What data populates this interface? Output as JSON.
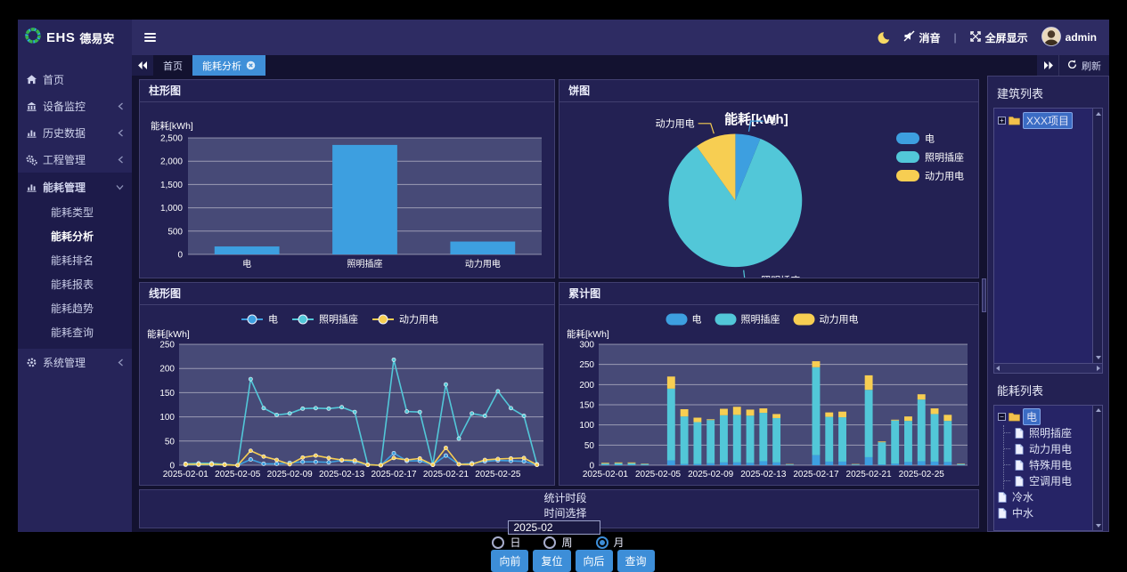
{
  "brand": {
    "logo_icon": "ehs-ring-logo",
    "title_en": "EHS",
    "title_cn": "德易安"
  },
  "topbar": {
    "menu_icon": "hamburger-icon",
    "theme_icon": "moon-icon",
    "mute": {
      "icon": "mute-icon",
      "label": "消音"
    },
    "divider": "|",
    "fullscreen": {
      "icon": "fullscreen-icon",
      "label": "全屏显示"
    },
    "user": {
      "avatar_icon": "user-avatar",
      "name": "admin"
    }
  },
  "tabbar": {
    "tabs": [
      {
        "name": "tab-home",
        "label": "首页",
        "active": false
      },
      {
        "name": "tab-energy-analysis",
        "label": "能耗分析",
        "active": true,
        "close_icon": "tab-close-icon"
      }
    ],
    "refresh_label": "刷新"
  },
  "sidebar": {
    "items": [
      {
        "name": "nav-home",
        "label": "首页",
        "icon": "home-icon"
      },
      {
        "name": "nav-device-monitor",
        "label": "设备监控",
        "icon": "device-monitor-icon",
        "chevron": "left"
      },
      {
        "name": "nav-history-data",
        "label": "历史数据",
        "icon": "history-chart-icon",
        "chevron": "left"
      },
      {
        "name": "nav-project-mgmt",
        "label": "工程管理",
        "icon": "project-gears-icon",
        "chevron": "left"
      },
      {
        "name": "nav-energy-mgmt",
        "label": "能耗管理",
        "icon": "energy-chart-icon",
        "chevron": "down",
        "expanded": true,
        "children": [
          {
            "name": "nav-energy-type",
            "label": "能耗类型",
            "active": false
          },
          {
            "name": "nav-energy-analysis",
            "label": "能耗分析",
            "active": true
          },
          {
            "name": "nav-energy-ranking",
            "label": "能耗排名",
            "active": false
          },
          {
            "name": "nav-energy-report",
            "label": "能耗报表",
            "active": false
          },
          {
            "name": "nav-energy-trend",
            "label": "能耗趋势",
            "active": false
          },
          {
            "name": "nav-energy-query",
            "label": "能耗查询",
            "active": false
          }
        ]
      },
      {
        "name": "nav-system-mgmt",
        "label": "系统管理",
        "icon": "gear-icon",
        "chevron": "left"
      }
    ]
  },
  "chart_data": [
    {
      "type": "bar",
      "panel_title": "柱形图",
      "ylabel": "能耗[kWh]",
      "categories": [
        "电",
        "照明插座",
        "动力用电"
      ],
      "values": [
        171,
        2349,
        276
      ],
      "ylim": [
        0,
        2500
      ],
      "ytick": 500,
      "bar_color": "#3D9FE0",
      "plot_bg": "#474a77",
      "grid_color": "rgba(255,255,255,0.45)"
    },
    {
      "type": "pie",
      "panel_title": "饼图",
      "title": "能耗[kWh]",
      "labels": [
        "电",
        "照明插座",
        "动力用电"
      ],
      "values": [
        171,
        2349,
        276
      ],
      "colors": [
        "#3D9FE0",
        "#52C7D8",
        "#F7CE52"
      ],
      "legend_position": "right"
    },
    {
      "type": "line",
      "panel_title": "线形图",
      "ylabel": "能耗[kWh]",
      "ylim": [
        0,
        250
      ],
      "ytick": 50,
      "days": 28,
      "tick_every": 4,
      "x_tick_labels": [
        "2025-02-01",
        "2025-02-05",
        "2025-02-09",
        "2025-02-13",
        "2025-02-17",
        "2025-02-21",
        "2025-02-25"
      ],
      "plot_bg": "#474a77",
      "grid_color": "rgba(255,255,255,0.45)",
      "series": [
        {
          "name": "电",
          "color": "#3D9FE0",
          "values": [
            1,
            1,
            1,
            1,
            0,
            12,
            3,
            3,
            5,
            7,
            7,
            6,
            10,
            7,
            1,
            0,
            25,
            9,
            9,
            1,
            20,
            2,
            4,
            8,
            10,
            9,
            8,
            1
          ]
        },
        {
          "name": "照明插座",
          "color": "#52C7D8",
          "values": [
            3,
            4,
            4,
            2,
            0,
            178,
            118,
            104,
            107,
            117,
            118,
            117,
            120,
            110,
            1,
            0,
            218,
            111,
            110,
            1,
            167,
            55,
            107,
            102,
            153,
            118,
            102,
            2
          ]
        },
        {
          "name": "动力用电",
          "color": "#F7CE52",
          "values": [
            2,
            2,
            2,
            1,
            0,
            30,
            18,
            11,
            2,
            16,
            20,
            15,
            11,
            10,
            1,
            0,
            15,
            11,
            14,
            1,
            36,
            2,
            2,
            11,
            13,
            14,
            15,
            1
          ]
        }
      ]
    },
    {
      "type": "stacked-bar",
      "panel_title": "累计图",
      "ylabel": "能耗[kWh]",
      "ylim": [
        0,
        300
      ],
      "ytick": 50,
      "days": 28,
      "tick_every": 4,
      "x_tick_labels": [
        "2025-02-01",
        "2025-02-05",
        "2025-02-09",
        "2025-02-13",
        "2025-02-17",
        "2025-02-21",
        "2025-02-25"
      ],
      "plot_bg": "#474a77",
      "grid_color": "rgba(255,255,255,0.45)",
      "series": [
        {
          "name": "电",
          "color": "#3D9FE0",
          "values": [
            1,
            1,
            1,
            1,
            0,
            12,
            3,
            3,
            5,
            7,
            7,
            6,
            10,
            7,
            1,
            0,
            25,
            9,
            9,
            1,
            20,
            2,
            4,
            8,
            10,
            9,
            8,
            1
          ]
        },
        {
          "name": "照明插座",
          "color": "#52C7D8",
          "values": [
            3,
            4,
            4,
            2,
            0,
            178,
            118,
            104,
            107,
            117,
            118,
            117,
            120,
            110,
            1,
            0,
            218,
            111,
            110,
            1,
            167,
            55,
            107,
            102,
            153,
            118,
            102,
            2
          ]
        },
        {
          "name": "动力用电",
          "color": "#F7CE52",
          "values": [
            2,
            2,
            2,
            1,
            0,
            30,
            18,
            11,
            2,
            16,
            20,
            15,
            11,
            10,
            1,
            0,
            15,
            11,
            14,
            1,
            36,
            2,
            2,
            11,
            13,
            14,
            15,
            1
          ]
        }
      ]
    }
  ],
  "controls": {
    "period_label": "统计时段",
    "time_label": "时间选择",
    "time_value": "2025-02",
    "radios": [
      {
        "name": "radio-day",
        "label": "日",
        "checked": false
      },
      {
        "name": "radio-week",
        "label": "周",
        "checked": false
      },
      {
        "name": "radio-month",
        "label": "月",
        "checked": true
      }
    ],
    "buttons": [
      {
        "name": "prev-button",
        "label": "向前"
      },
      {
        "name": "reset-button",
        "label": "复位"
      },
      {
        "name": "next-button",
        "label": "向后"
      },
      {
        "name": "query-button",
        "label": "查询"
      }
    ]
  },
  "right_panel": {
    "building_title": "建筑列表",
    "building_tree": [
      {
        "name": "tree-node-xxx-project",
        "label": "XXX项目",
        "icon": "folder-icon",
        "selected": true,
        "expander": "+"
      }
    ],
    "energy_title": "能耗列表",
    "energy_tree": [
      {
        "name": "tree-node-electric",
        "label": "电",
        "icon": "folder-icon",
        "selected": true,
        "expander": "-",
        "children": [
          {
            "name": "tree-node-lighting-socket",
            "label": "照明插座",
            "icon": "file-icon"
          },
          {
            "name": "tree-node-power",
            "label": "动力用电",
            "icon": "file-icon"
          },
          {
            "name": "tree-node-special",
            "label": "特殊用电",
            "icon": "file-icon"
          },
          {
            "name": "tree-node-ac",
            "label": "空调用电",
            "icon": "file-icon"
          }
        ]
      },
      {
        "name": "tree-node-cold-water",
        "label": "冷水",
        "icon": "file-icon"
      },
      {
        "name": "tree-node-reclaimed-water",
        "label": "中水",
        "icon": "file-icon"
      }
    ]
  },
  "colors": {
    "accent": "#3d8ed8",
    "blue": "#3D9FE0",
    "cyan": "#52C7D8",
    "yellow": "#F7CE52",
    "moon": "#f7d964",
    "folder": "#f3c14b"
  }
}
